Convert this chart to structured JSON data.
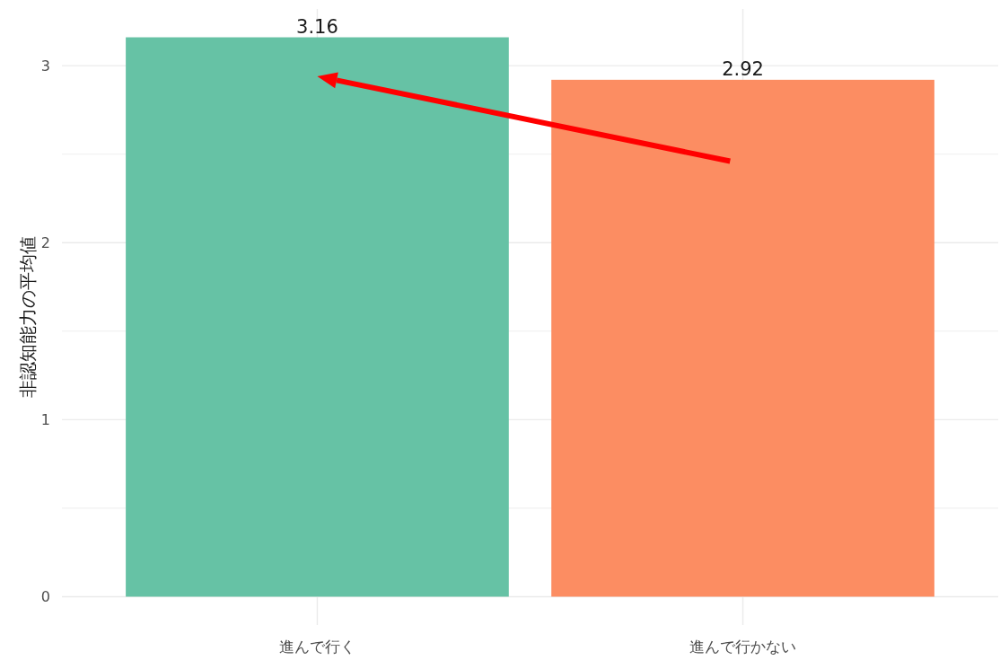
{
  "chart_data": {
    "type": "bar",
    "ylabel": "非認知能力の平均値",
    "categories": [
      "進んで行く",
      "進んで行かない"
    ],
    "values": [
      3.16,
      2.92
    ],
    "colors": [
      "#66c2a5",
      "#fc8d62"
    ],
    "data_labels": true,
    "ylim": [
      -0.16,
      3.32
    ],
    "yticks": [
      0,
      {
        "value": 0.5,
        "label": null
      },
      1,
      {
        "value": 1.5,
        "label": null
      },
      2,
      {
        "value": 2.5,
        "label": null
      },
      3
    ],
    "grid": true
  }
}
